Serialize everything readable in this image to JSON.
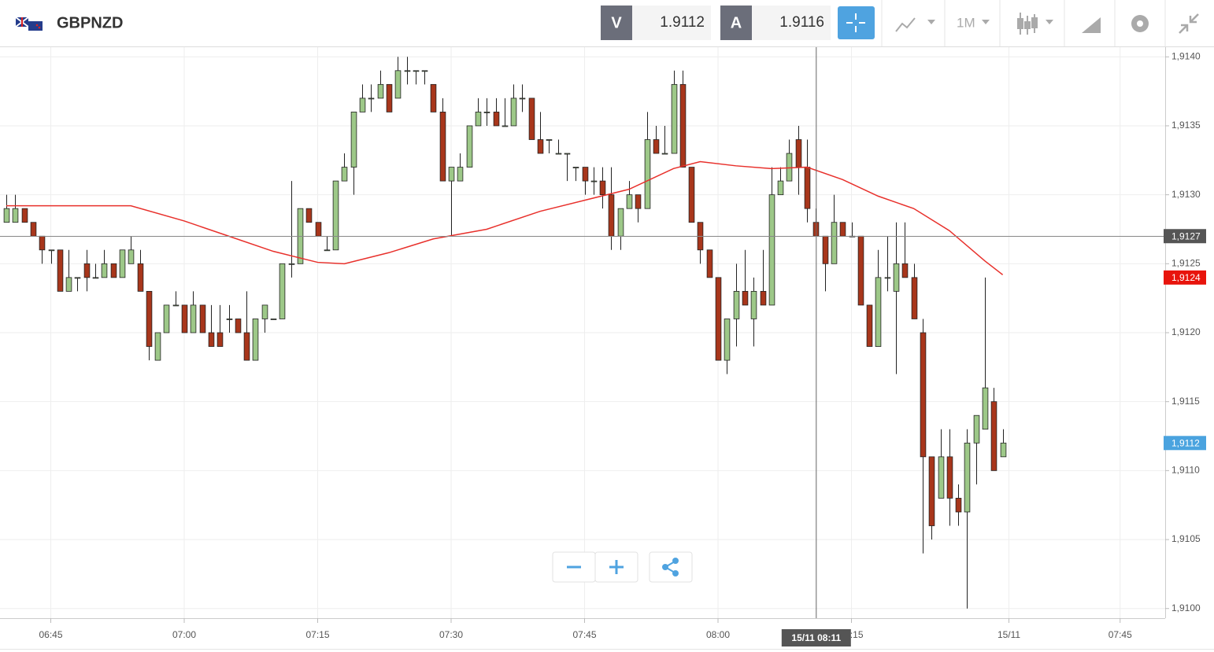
{
  "toolbar": {
    "symbol": "GBPNZD",
    "sell_label": "V",
    "sell_price": "1.9112",
    "buy_label": "A",
    "buy_price": "1.9116",
    "timeframe": "1M"
  },
  "chart_data": {
    "type": "candlestick",
    "up_color": "#9dc888",
    "down_color": "#a8361b",
    "xlim": [
      -0.708,
      130.265
    ],
    "ylim": [
      1.90993,
      1.91407
    ],
    "grid": true,
    "xticks": [
      {
        "value": 5,
        "label": "06:45"
      },
      {
        "value": 20,
        "label": "07:00"
      },
      {
        "value": 35,
        "label": "07:15"
      },
      {
        "value": 50,
        "label": "07:30"
      },
      {
        "value": 65,
        "label": "07:45"
      },
      {
        "value": 80,
        "label": "08:00"
      },
      {
        "value": 95,
        "label": "08:15"
      },
      {
        "value": 112.7,
        "label": "15/11"
      },
      {
        "value": 125.2,
        "label": "07:45"
      }
    ],
    "yticks": [
      {
        "value": 1.91,
        "label": "1,9100"
      },
      {
        "value": 1.9105,
        "label": "1,9105"
      },
      {
        "value": 1.911,
        "label": "1,9110"
      },
      {
        "value": 1.9115,
        "label": "1,9115"
      },
      {
        "value": 1.912,
        "label": "1,9120"
      },
      {
        "value": 1.9125,
        "label": "1,9125"
      },
      {
        "value": 1.913,
        "label": "1,9130"
      },
      {
        "value": 1.9135,
        "label": "1,9135"
      },
      {
        "value": 1.914,
        "label": "1,9140"
      }
    ],
    "candles": {
      "x": [
        0,
        1,
        2,
        3,
        4,
        5,
        6,
        7,
        8,
        9,
        10,
        11,
        12,
        13,
        14,
        15,
        16,
        17,
        18,
        19,
        20,
        21,
        22,
        23,
        24,
        25,
        26,
        27,
        28,
        29,
        30,
        31,
        32,
        33,
        34,
        35,
        36,
        37,
        38,
        39,
        40,
        41,
        42,
        43,
        44,
        45,
        46,
        47,
        48,
        49,
        50,
        51,
        52,
        53,
        54,
        55,
        56,
        57,
        58,
        59,
        60,
        61,
        62,
        63,
        64,
        65,
        66,
        67,
        68,
        69,
        70,
        71,
        72,
        73,
        74,
        75,
        76,
        77,
        78,
        79,
        80,
        81,
        82,
        83,
        84,
        85,
        86,
        87,
        88,
        89,
        90,
        91,
        92,
        93,
        94,
        95,
        96,
        97,
        98,
        99,
        100,
        101,
        102,
        103,
        104,
        105,
        106,
        107,
        108,
        109,
        110,
        111,
        112
      ],
      "open": [
        1.9128,
        1.9128,
        1.9129,
        1.9128,
        1.9127,
        1.9126,
        1.9126,
        1.9123,
        1.9124,
        1.9125,
        1.9124,
        1.9124,
        1.9125,
        1.9124,
        1.9125,
        1.9125,
        1.9123,
        1.9118,
        1.912,
        1.9122,
        1.9122,
        1.912,
        1.9122,
        1.912,
        1.912,
        1.9121,
        1.9121,
        1.912,
        1.9118,
        1.9121,
        1.9121,
        1.9121,
        1.9125,
        1.9125,
        1.9129,
        1.9128,
        1.9126,
        1.9126,
        1.9131,
        1.9132,
        1.9136,
        1.9137,
        1.9137,
        1.9138,
        1.9137,
        1.9139,
        1.9139,
        1.9139,
        1.9138,
        1.9136,
        1.9131,
        1.9131,
        1.9132,
        1.9135,
        1.9136,
        1.9136,
        1.9135,
        1.9135,
        1.9137,
        1.9137,
        1.9134,
        1.9134,
        1.9133,
        1.9133,
        1.9132,
        1.9132,
        1.9131,
        1.9131,
        1.913,
        1.9127,
        1.9129,
        1.913,
        1.9129,
        1.9134,
        1.9133,
        1.9133,
        1.9138,
        1.9132,
        1.9128,
        1.9126,
        1.9124,
        1.9118,
        1.9121,
        1.9123,
        1.9121,
        1.9123,
        1.9122,
        1.913,
        1.9131,
        1.9134,
        1.9132,
        1.9128,
        1.9127,
        1.9125,
        1.9128,
        1.9127,
        1.9127,
        1.9122,
        1.9119,
        1.9124,
        1.9123,
        1.9125,
        1.9124,
        1.912,
        1.9111,
        1.9108,
        1.9111,
        1.9108,
        1.9107,
        1.9112,
        1.9113,
        1.9115,
        1.9111
      ],
      "high": [
        1.913,
        1.913,
        1.9129,
        1.9128,
        1.9127,
        1.9126,
        1.9126,
        1.9126,
        1.9124,
        1.9126,
        1.9125,
        1.9126,
        1.9125,
        1.9126,
        1.9127,
        1.9126,
        1.9123,
        1.912,
        1.9122,
        1.9123,
        1.9122,
        1.9123,
        1.9122,
        1.9122,
        1.9122,
        1.9122,
        1.9121,
        1.9123,
        1.9121,
        1.9122,
        1.9121,
        1.9125,
        1.9131,
        1.9129,
        1.9129,
        1.9128,
        1.9127,
        1.9131,
        1.9133,
        1.9136,
        1.9138,
        1.9138,
        1.9139,
        1.9138,
        1.914,
        1.914,
        1.9139,
        1.9139,
        1.9138,
        1.9137,
        1.9132,
        1.9133,
        1.9135,
        1.9137,
        1.9137,
        1.9137,
        1.9137,
        1.9138,
        1.9138,
        1.9137,
        1.9136,
        1.9134,
        1.9134,
        1.9133,
        1.9132,
        1.9132,
        1.9132,
        1.9132,
        1.9132,
        1.9129,
        1.9131,
        1.913,
        1.9136,
        1.9135,
        1.9135,
        1.9139,
        1.9139,
        1.9132,
        1.9128,
        1.9126,
        1.9124,
        1.9121,
        1.9125,
        1.9126,
        1.9124,
        1.9126,
        1.9132,
        1.9132,
        1.9134,
        1.9135,
        1.9134,
        1.9129,
        1.9127,
        1.913,
        1.9128,
        1.9128,
        1.9127,
        1.9122,
        1.9126,
        1.9127,
        1.9128,
        1.9128,
        1.9125,
        1.9121,
        1.9111,
        1.9113,
        1.9113,
        1.9109,
        1.9113,
        1.9114,
        1.9124,
        1.9116,
        1.9113
      ],
      "low": [
        1.9128,
        1.9128,
        1.9128,
        1.9127,
        1.9125,
        1.9125,
        1.9123,
        1.9123,
        1.9123,
        1.9123,
        1.9124,
        1.9124,
        1.9124,
        1.9124,
        1.9125,
        1.9123,
        1.9118,
        1.9118,
        1.912,
        1.9122,
        1.912,
        1.912,
        1.912,
        1.9119,
        1.9119,
        1.912,
        1.912,
        1.9118,
        1.9118,
        1.912,
        1.9121,
        1.9121,
        1.9124,
        1.9125,
        1.9128,
        1.9127,
        1.9126,
        1.9126,
        1.9131,
        1.913,
        1.9136,
        1.9136,
        1.9137,
        1.9136,
        1.9137,
        1.9138,
        1.9138,
        1.9138,
        1.9136,
        1.9131,
        1.9127,
        1.9131,
        1.9132,
        1.9135,
        1.9135,
        1.9135,
        1.9135,
        1.9135,
        1.9136,
        1.9134,
        1.9133,
        1.9133,
        1.9133,
        1.9131,
        1.9131,
        1.913,
        1.913,
        1.9129,
        1.9126,
        1.9126,
        1.9129,
        1.9128,
        1.9129,
        1.9133,
        1.9133,
        1.9133,
        1.9132,
        1.9128,
        1.9125,
        1.9124,
        1.9118,
        1.9117,
        1.9119,
        1.9122,
        1.9119,
        1.9122,
        1.9122,
        1.913,
        1.9131,
        1.913,
        1.9128,
        1.9127,
        1.9123,
        1.9125,
        1.9127,
        1.9127,
        1.9122,
        1.9119,
        1.9119,
        1.9123,
        1.9117,
        1.9124,
        1.9121,
        1.9104,
        1.9105,
        1.9108,
        1.9106,
        1.9106,
        1.91,
        1.9109,
        1.9113,
        1.911,
        1.9111
      ],
      "close": [
        1.9129,
        1.9129,
        1.9128,
        1.9127,
        1.9126,
        1.9126,
        1.9123,
        1.9124,
        1.9124,
        1.9124,
        1.9124,
        1.9125,
        1.9124,
        1.9126,
        1.9126,
        1.9123,
        1.9119,
        1.912,
        1.9122,
        1.9122,
        1.912,
        1.9122,
        1.912,
        1.9119,
        1.9119,
        1.9121,
        1.912,
        1.9118,
        1.9121,
        1.9122,
        1.9121,
        1.9125,
        1.9125,
        1.9129,
        1.9128,
        1.9127,
        1.9126,
        1.9131,
        1.9132,
        1.9136,
        1.9137,
        1.9137,
        1.9138,
        1.9136,
        1.9139,
        1.9139,
        1.9139,
        1.9139,
        1.9136,
        1.9131,
        1.9132,
        1.9132,
        1.9135,
        1.9136,
        1.9136,
        1.9135,
        1.9135,
        1.9137,
        1.9137,
        1.9134,
        1.9133,
        1.9134,
        1.9133,
        1.9133,
        1.9132,
        1.9131,
        1.9131,
        1.913,
        1.9127,
        1.9129,
        1.913,
        1.9129,
        1.9134,
        1.9133,
        1.9133,
        1.9138,
        1.9132,
        1.9128,
        1.9126,
        1.9124,
        1.9118,
        1.9121,
        1.9123,
        1.9122,
        1.9123,
        1.9122,
        1.913,
        1.9131,
        1.9133,
        1.9132,
        1.9129,
        1.9127,
        1.9125,
        1.9128,
        1.9127,
        1.9127,
        1.9122,
        1.9119,
        1.9124,
        1.9124,
        1.9125,
        1.9124,
        1.9121,
        1.9111,
        1.9106,
        1.9111,
        1.9108,
        1.9107,
        1.9112,
        1.9114,
        1.9116,
        1.911,
        1.9112
      ]
    },
    "ma": {
      "color": "#e8302b",
      "x": [
        0,
        8,
        14,
        20,
        25,
        30,
        35,
        38,
        43,
        48,
        54,
        60,
        65,
        70,
        75,
        78,
        82,
        86,
        90,
        94,
        98,
        102,
        106,
        110,
        112
      ],
      "values": [
        1.91292,
        1.91292,
        1.91292,
        1.91281,
        1.9127,
        1.91259,
        1.91251,
        1.9125,
        1.91258,
        1.91268,
        1.91275,
        1.91288,
        1.91296,
        1.91304,
        1.91319,
        1.91324,
        1.91321,
        1.91319,
        1.9132,
        1.91311,
        1.91299,
        1.9129,
        1.91274,
        1.91252,
        1.91242
      ]
    },
    "markers": [
      {
        "value": 1.9124,
        "label": "1,9124",
        "color": "#e8140c"
      },
      {
        "value": 1.9112,
        "label": "1,9112",
        "color": "#4aa3df"
      }
    ],
    "crosshair": {
      "x": {
        "value": 91,
        "label": "15/11 08:11"
      },
      "y": {
        "value": 1.9127,
        "label": "1,9127"
      }
    }
  }
}
